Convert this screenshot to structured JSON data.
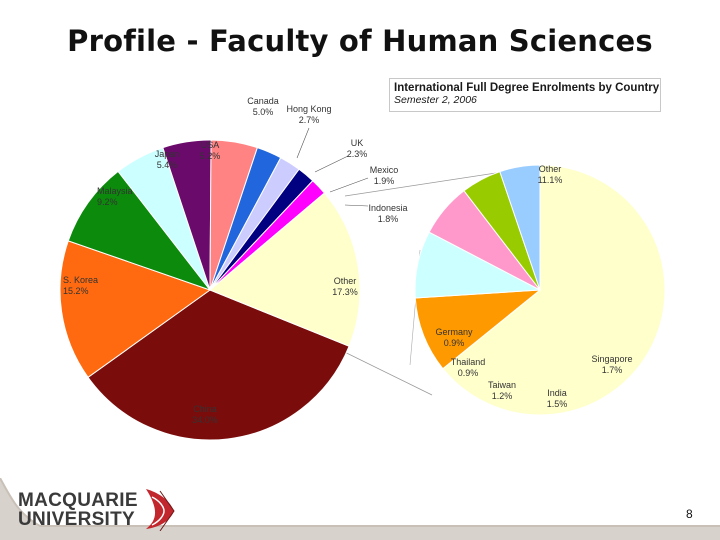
{
  "slide": {
    "title": "Profile - Faculty of Human Sciences",
    "page_number": "8",
    "logo": {
      "line1": "MACQUARIE",
      "line2": "UNIVERSITY"
    }
  },
  "chart_title": {
    "line1": "International Full Degree Enrolments by Country",
    "line2": "Semester 2, 2006"
  },
  "chart_data": [
    {
      "type": "pie",
      "slices": [
        {
          "name": "China",
          "value": 34.0,
          "label": "34.0%",
          "color": "#7b0c0c"
        },
        {
          "name": "S. Korea",
          "value": 15.2,
          "label": "15.2%",
          "color": "#ff6a10"
        },
        {
          "name": "Malaysia",
          "value": 9.2,
          "label": "9.2%",
          "color": "#0c8a0c"
        },
        {
          "name": "Japan",
          "value": 5.4,
          "label": "5.4%",
          "color": "#ccffff"
        },
        {
          "name": "USA",
          "value": 5.2,
          "label": "5.2%",
          "color": "#6a0a6a"
        },
        {
          "name": "Canada",
          "value": 5.0,
          "label": "5.0%",
          "color": "#ff8383"
        },
        {
          "name": "Hong Kong",
          "value": 2.7,
          "label": "2.7%",
          "color": "#2266dd"
        },
        {
          "name": "UK",
          "value": 2.3,
          "label": "2.3%",
          "color": "#ccccff"
        },
        {
          "name": "Mexico",
          "value": 1.9,
          "label": "1.9%",
          "color": "#000080"
        },
        {
          "name": "Indonesia",
          "value": 1.8,
          "label": "1.8%",
          "color": "#ff00ff"
        },
        {
          "name": "Other",
          "value": 17.3,
          "label": "17.3%",
          "color": "#ffffcc"
        }
      ]
    },
    {
      "type": "pie",
      "slices": [
        {
          "name": "Other",
          "value": 11.1,
          "label": "11.1%",
          "color": "#ffffcc"
        },
        {
          "name": "Singapore",
          "value": 1.7,
          "label": "1.7%",
          "color": "#ff9900"
        },
        {
          "name": "India",
          "value": 1.5,
          "label": "1.5%",
          "color": "#ccffff"
        },
        {
          "name": "Taiwan",
          "value": 1.2,
          "label": "1.2%",
          "color": "#ff99cc"
        },
        {
          "name": "Thailand",
          "value": 0.9,
          "label": "0.9%",
          "color": "#99cc00"
        },
        {
          "name": "Germany",
          "value": 0.9,
          "label": "0.9%",
          "color": "#99ccff"
        }
      ]
    }
  ]
}
